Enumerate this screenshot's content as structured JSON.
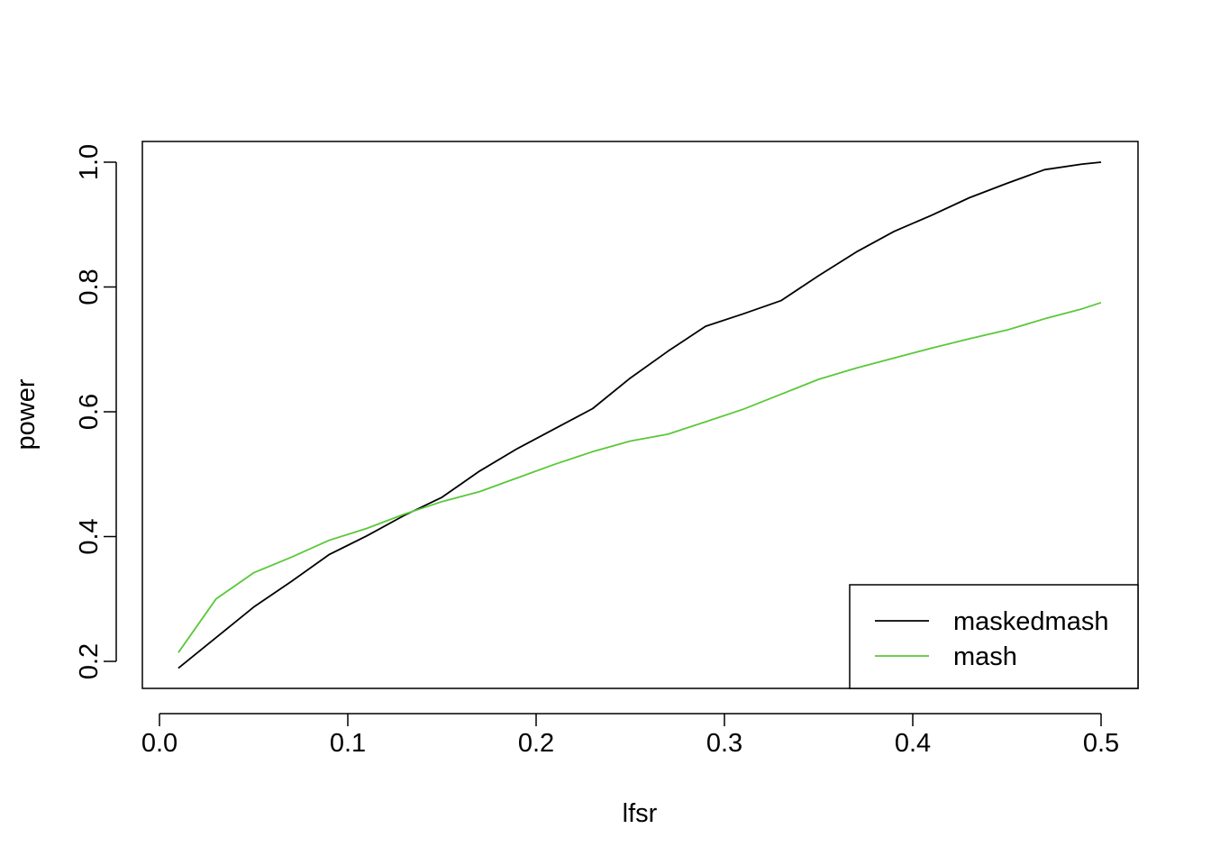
{
  "chart_data": {
    "type": "line",
    "title": "",
    "xlabel": "lfsr",
    "ylabel": "power",
    "xlim": [
      0.0,
      0.5
    ],
    "ylim": [
      0.2,
      1.0
    ],
    "x_ticks": [
      0.0,
      0.1,
      0.2,
      0.3,
      0.4,
      0.5
    ],
    "x_tick_labels": [
      "0.0",
      "0.1",
      "0.2",
      "0.3",
      "0.4",
      "0.5"
    ],
    "y_ticks": [
      0.2,
      0.4,
      0.6,
      0.8,
      1.0
    ],
    "y_tick_labels": [
      "0.2",
      "0.4",
      "0.6",
      "0.8",
      "1.0"
    ],
    "grid": false,
    "legend_position": "bottom-right",
    "x": [
      0.01,
      0.03,
      0.05,
      0.07,
      0.09,
      0.11,
      0.13,
      0.15,
      0.17,
      0.19,
      0.21,
      0.23,
      0.25,
      0.27,
      0.29,
      0.31,
      0.33,
      0.35,
      0.37,
      0.39,
      0.41,
      0.43,
      0.45,
      0.47,
      0.49,
      0.5
    ],
    "series": [
      {
        "name": "maskedmash",
        "color": "#000000",
        "values": [
          0.189,
          0.238,
          0.287,
          0.328,
          0.371,
          0.401,
          0.434,
          0.463,
          0.505,
          0.541,
          0.573,
          0.605,
          0.654,
          0.697,
          0.737,
          0.757,
          0.778,
          0.818,
          0.856,
          0.889,
          0.915,
          0.943,
          0.966,
          0.988,
          0.997,
          1.0
        ]
      },
      {
        "name": "mash",
        "color": "#5ac83a",
        "values": [
          0.214,
          0.3,
          0.342,
          0.367,
          0.394,
          0.413,
          0.436,
          0.456,
          0.472,
          0.494,
          0.516,
          0.536,
          0.553,
          0.564,
          0.584,
          0.604,
          0.628,
          0.652,
          0.67,
          0.686,
          0.702,
          0.717,
          0.731,
          0.749,
          0.765,
          0.775
        ]
      }
    ]
  }
}
